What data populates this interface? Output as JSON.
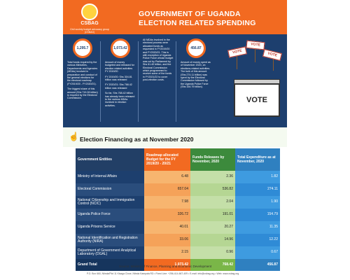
{
  "brand": {
    "name": "CSBAG",
    "tagline": "Civil society budget advocacy group (CSBAG)"
  },
  "header": {
    "title_line1": "GOVERNMENT OF UGANDA",
    "title_line2": "ELECTION RELATED SPENDING"
  },
  "info_columns": [
    {
      "figure": "1,295.7",
      "paragraphs": [
        "Total funds required by the various Ministries, Departments and Agencies (MDAs) involved in preparation and conduct of the general elections for the electoral roadmap (FY2019/20 - FY2020/21).",
        "The biggest share of this amount (Shs 719.28 billion) is required by the Electoral Commission."
      ]
    },
    {
      "figure": "1,073.42",
      "paragraphs": [
        "Amount of money budgeted and released for election related activities FY 2019/20",
        "FY 2019/20: Shs 304.81 billion was released",
        "FY 2020/21: Shs 768.42 billion was released",
        "So far, Shs 768.42 billion has already been released to the various MDAs involved in election activities."
      ]
    },
    {
      "figure": "",
      "paragraphs": [
        "All MDAs involved in the electoral process were allocated funds as requested in FY2019/20 and FY2020/21. This is with exception of Uganda Police Force whose budget was cut by Parliament by Shs 61.40 billion, and the Electoral Commission which programmed to receive some of the funds in FY2021/22 to cover post-election costs."
      ]
    },
    {
      "figure": "456.87",
      "paragraphs": [
        "Amount of money spent as of November 2020, on elections-related activities. The bulk of this amount (Shs 274.11 billion) was spent by the Electoral Commission followed by the Uganda Police Force (Shs 154.79 billion)."
      ]
    }
  ],
  "illustration": {
    "box_label": "VOTE",
    "sign_labels": [
      "VOTE",
      "VOTE",
      "VOTE"
    ]
  },
  "section_title": "Election Financing as at November 2020",
  "table": {
    "headers": [
      "Government Entities",
      "Roadmap allocated Budget for the FY 2019/20 - 20/21",
      "Funds Releases by November, 2020",
      "Total Expenditure as at November, 2020"
    ],
    "rows": [
      [
        "Ministry of Internal Affairs",
        "6.48",
        "2.36",
        "1.82"
      ],
      [
        "Electoral Commission",
        "657.04",
        "536.82",
        "274.11"
      ],
      [
        "National Citizenship and Immigration Control (NCIC)",
        "7.98",
        "2.04",
        "1.90"
      ],
      [
        "Uganda Police Force",
        "326.72",
        "191.01",
        "154.79"
      ],
      [
        "Uganda Prisons Service",
        "40.01",
        "20.27",
        "11.35"
      ],
      [
        "National Identification and Registration Authority (NIRA)",
        "33.06",
        "14.96",
        "12.22"
      ],
      [
        "Department of Government Analytical Laboratory (DGAL)",
        "2.15",
        "0.96",
        "0.67"
      ],
      [
        "Grand Total",
        "1,073.42",
        "768.42",
        "456.87"
      ]
    ]
  },
  "source": "Source: Ministry of Finance, Planning and Economic Development",
  "footer": "P.O. Box 660, Ntinda/Plot 11 Kisaga Close, Ntinda Kampala RD • Fixed Line: +256-414-667-409 • E-mail: info@csbag.org • Web: www.csbag.org",
  "colors": {
    "orange": "#f26a21",
    "navy": "#1d3f6e",
    "green": "#3c8a3c",
    "blue": "#2f80c0"
  }
}
